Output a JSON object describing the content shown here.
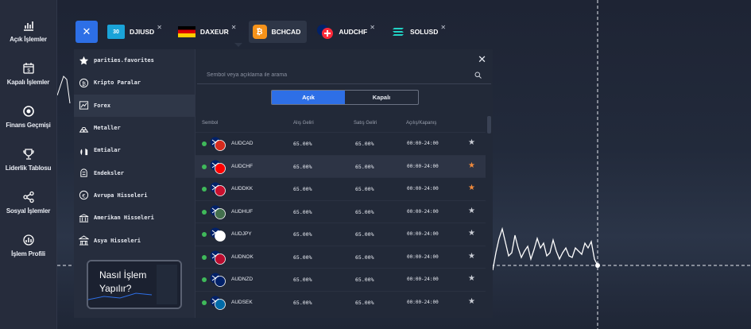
{
  "sidebar": {
    "items": [
      {
        "label": "Açık İşlemler",
        "icon": "chart-bars-icon"
      },
      {
        "label": "Kapalı İşlemler",
        "icon": "calendar-dollar-icon"
      },
      {
        "label": "Finans Geçmişi",
        "icon": "coin-icon"
      },
      {
        "label": "Liderlik Tablosu",
        "icon": "trophy-icon"
      },
      {
        "label": "Sosyal İşlemler",
        "icon": "share-icon"
      },
      {
        "label": "İşlem Profili",
        "icon": "profile-chart-icon"
      }
    ]
  },
  "tabs": [
    {
      "label": "DJIUSD",
      "icon_text": "30",
      "icon_color": "#1aa3d8",
      "active": false
    },
    {
      "label": "DAXEUR",
      "icon_text": "",
      "icon_color": "#000000",
      "active": false
    },
    {
      "label": "BCHCAD",
      "icon_text": "",
      "icon_color": "#f7931a",
      "active": true
    },
    {
      "label": "AUDCHF",
      "icon_text": "",
      "icon_color": "#ff2a3a",
      "active": false
    },
    {
      "label": "SOLUSD",
      "icon_text": "",
      "icon_color": "#9945ff",
      "active": false
    }
  ],
  "categories": [
    {
      "label": "parities.favorites",
      "icon": "star-icon"
    },
    {
      "label": "Kripto Paralar",
      "icon": "crypto-icon"
    },
    {
      "label": "Forex",
      "icon": "forex-icon",
      "active": true
    },
    {
      "label": "Metaller",
      "icon": "metals-icon"
    },
    {
      "label": "Emtialar",
      "icon": "commodities-icon"
    },
    {
      "label": "Endeksler",
      "icon": "indices-icon"
    },
    {
      "label": "Avrupa Hisseleri",
      "icon": "euro-stocks-icon"
    },
    {
      "label": "Amerikan Hisseleri",
      "icon": "us-stocks-icon"
    },
    {
      "label": "Asya Hisseleri",
      "icon": "asia-stocks-icon"
    }
  ],
  "howto": {
    "title": "Nasıl İşlem Yapılır?"
  },
  "search": {
    "placeholder": "Sembol veya açıklama ile arama"
  },
  "toggle": {
    "open": "Açık",
    "closed": "Kapalı"
  },
  "table": {
    "headers": [
      "Sembol",
      "Alış Geliri",
      "Satış Geliri",
      "Açılış/Kapanış"
    ],
    "rows": [
      {
        "symbol": "AUDCAD",
        "buy": "65.00%",
        "sell": "65.00%",
        "hours": "00:00-24:00",
        "fav": false,
        "flag2": "#d52b1e"
      },
      {
        "symbol": "AUDCHF",
        "buy": "65.00%",
        "sell": "65.00%",
        "hours": "00:00-24:00",
        "fav": true,
        "flag2": "#ff0000",
        "selected": true
      },
      {
        "symbol": "AUDDKK",
        "buy": "65.00%",
        "sell": "65.00%",
        "hours": "00:00-24:00",
        "fav": true,
        "flag2": "#c8102e"
      },
      {
        "symbol": "AUDHUF",
        "buy": "65.00%",
        "sell": "65.00%",
        "hours": "00:00-24:00",
        "fav": false,
        "flag2": "#436f4d"
      },
      {
        "symbol": "AUDJPY",
        "buy": "65.00%",
        "sell": "65.00%",
        "hours": "00:00-24:00",
        "fav": false,
        "flag2": "#ffffff"
      },
      {
        "symbol": "AUDNOK",
        "buy": "65.00%",
        "sell": "65.00%",
        "hours": "00:00-24:00",
        "fav": false,
        "flag2": "#ba0c2f"
      },
      {
        "symbol": "AUDNZD",
        "buy": "65.00%",
        "sell": "65.00%",
        "hours": "00:00-24:00",
        "fav": false,
        "flag2": "#012169"
      },
      {
        "symbol": "AUDSEK",
        "buy": "65.00%",
        "sell": "65.00%",
        "hours": "00:00-24:00",
        "fav": false,
        "flag2": "#006aa7"
      }
    ]
  },
  "colors": {
    "accent": "#2e6fe6",
    "favorite": "#f08a3c",
    "online": "#3fb95a"
  }
}
